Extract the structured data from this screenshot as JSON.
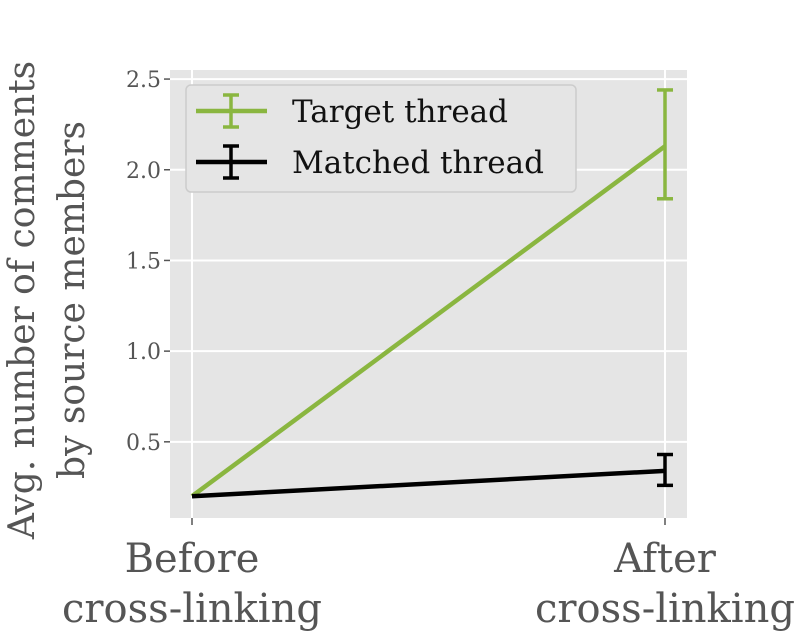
{
  "chart_data": {
    "type": "line",
    "categories": [
      "Before\ncross-linking",
      "After\ncross-linking"
    ],
    "ylabel": [
      "Avg. number of comments",
      "by source members"
    ],
    "ylim": [
      0.08,
      2.55
    ],
    "yticks": [
      0.5,
      1.0,
      1.5,
      2.0,
      2.5
    ],
    "ytick_labels": [
      "0.5",
      "1.0",
      "1.5",
      "2.0",
      "2.5"
    ],
    "grid": true,
    "legend_position": "top-left",
    "series": [
      {
        "name": "Target thread",
        "color": "#8ab640",
        "values": [
          0.2,
          2.13
        ],
        "err_low": [
          0.2,
          1.84
        ],
        "err_high": [
          0.2,
          2.44
        ]
      },
      {
        "name": "Matched thread",
        "color": "#000000",
        "values": [
          0.2,
          0.34
        ],
        "err_low": [
          0.2,
          0.26
        ],
        "err_high": [
          0.2,
          0.43
        ]
      }
    ]
  }
}
